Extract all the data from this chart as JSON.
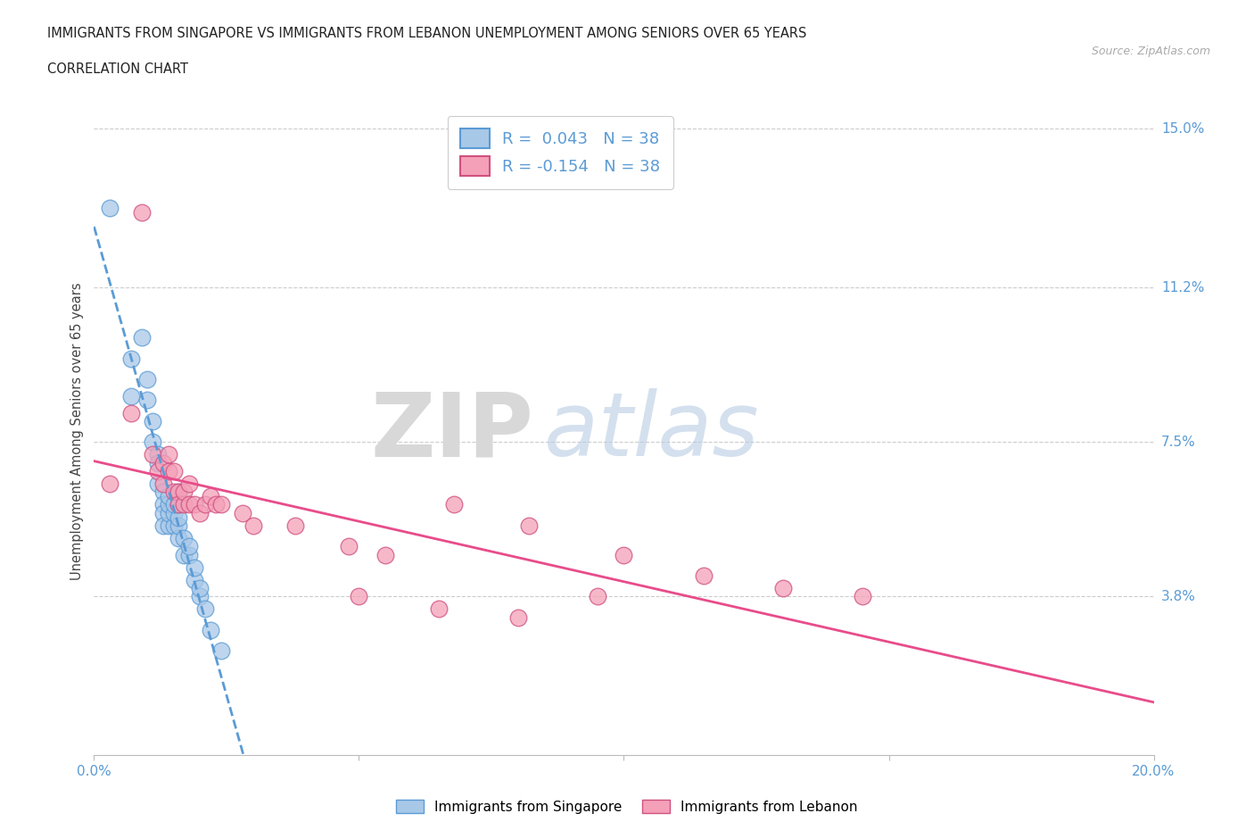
{
  "title_line1": "IMMIGRANTS FROM SINGAPORE VS IMMIGRANTS FROM LEBANON UNEMPLOYMENT AMONG SENIORS OVER 65 YEARS",
  "title_line2": "CORRELATION CHART",
  "source": "Source: ZipAtlas.com",
  "ylabel": "Unemployment Among Seniors over 65 years",
  "xlim": [
    0.0,
    0.2
  ],
  "ylim": [
    0.0,
    0.155
  ],
  "ytick_labels_right": [
    "15.0%",
    "11.2%",
    "7.5%",
    "3.8%"
  ],
  "ytick_vals_right": [
    0.15,
    0.112,
    0.075,
    0.038
  ],
  "legend_r1": "R =  0.043   N = 38",
  "legend_r2": "R = -0.154   N = 38",
  "legend_color1": "#a8c8e8",
  "legend_color2": "#f4a0b8",
  "dot_color_singapore": "#a8c8e8",
  "dot_color_lebanon": "#f4a0b8",
  "trend_color_singapore": "#5B9BD5",
  "trend_color_lebanon": "#E84C8B",
  "singapore_x": [
    0.003,
    0.007,
    0.007,
    0.009,
    0.01,
    0.01,
    0.011,
    0.011,
    0.012,
    0.012,
    0.012,
    0.013,
    0.013,
    0.013,
    0.013,
    0.014,
    0.014,
    0.014,
    0.014,
    0.015,
    0.015,
    0.015,
    0.016,
    0.016,
    0.016,
    0.016,
    0.016,
    0.017,
    0.017,
    0.018,
    0.018,
    0.019,
    0.019,
    0.02,
    0.02,
    0.021,
    0.022,
    0.024
  ],
  "singapore_y": [
    0.131,
    0.095,
    0.086,
    0.1,
    0.09,
    0.085,
    0.08,
    0.075,
    0.072,
    0.07,
    0.065,
    0.063,
    0.06,
    0.058,
    0.055,
    0.055,
    0.058,
    0.06,
    0.062,
    0.055,
    0.058,
    0.06,
    0.052,
    0.055,
    0.057,
    0.06,
    0.063,
    0.048,
    0.052,
    0.048,
    0.05,
    0.042,
    0.045,
    0.038,
    0.04,
    0.035,
    0.03,
    0.025
  ],
  "lebanon_x": [
    0.003,
    0.007,
    0.009,
    0.011,
    0.012,
    0.013,
    0.013,
    0.014,
    0.014,
    0.015,
    0.015,
    0.016,
    0.016,
    0.017,
    0.017,
    0.018,
    0.018,
    0.019,
    0.02,
    0.021,
    0.022,
    0.023,
    0.024,
    0.028,
    0.03,
    0.038,
    0.048,
    0.055,
    0.068,
    0.082,
    0.1,
    0.115,
    0.13,
    0.145,
    0.05,
    0.065,
    0.08,
    0.095
  ],
  "lebanon_y": [
    0.065,
    0.082,
    0.13,
    0.072,
    0.068,
    0.065,
    0.07,
    0.072,
    0.068,
    0.068,
    0.063,
    0.063,
    0.06,
    0.06,
    0.063,
    0.06,
    0.065,
    0.06,
    0.058,
    0.06,
    0.062,
    0.06,
    0.06,
    0.058,
    0.055,
    0.055,
    0.05,
    0.048,
    0.06,
    0.055,
    0.048,
    0.043,
    0.04,
    0.038,
    0.038,
    0.035,
    0.033,
    0.038
  ]
}
